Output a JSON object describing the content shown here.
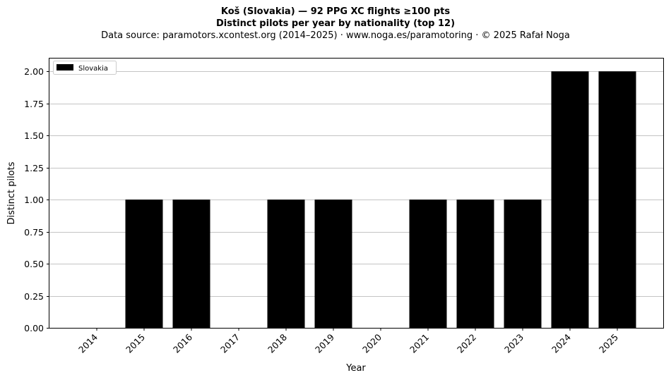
{
  "chart_data": {
    "type": "bar",
    "title": "Koš (Slovakia)  —  92 PPG XC flights ≥100 pts",
    "subtitle": "Distinct pilots per year by nationality (top 12)",
    "source": "Data source: paramotors.xcontest.org (2014–2025)  ·  www.noga.es/paramotoring  ·  © 2025 Rafał Noga",
    "xlabel": "Year",
    "ylabel": "Distinct pilots",
    "categories": [
      "2014",
      "2015",
      "2016",
      "2017",
      "2018",
      "2019",
      "2020",
      "2021",
      "2022",
      "2023",
      "2024",
      "2025"
    ],
    "series": [
      {
        "name": "Slovakia",
        "color": "#000000",
        "values": [
          0,
          1,
          1,
          0,
          1,
          1,
          0,
          1,
          1,
          1,
          2,
          2
        ]
      }
    ],
    "ylim": [
      0,
      2.1
    ],
    "yticks": [
      "0.00",
      "0.25",
      "0.50",
      "0.75",
      "1.00",
      "1.25",
      "1.50",
      "1.75",
      "2.00"
    ],
    "ytick_values": [
      0,
      0.25,
      0.5,
      0.75,
      1.0,
      1.25,
      1.5,
      1.75,
      2.0
    ],
    "grid": "y",
    "legend": "top-left"
  }
}
